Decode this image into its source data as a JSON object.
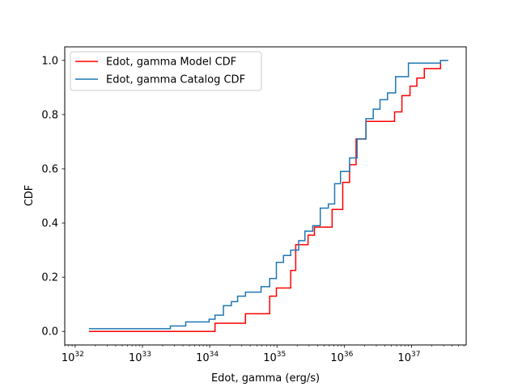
{
  "chart_data": {
    "type": "line",
    "title": "",
    "xlabel": "Edot, gamma (erg/s)",
    "ylabel": "CDF",
    "xscale": "log",
    "xlim": [
      7e+31,
      6.5e+37
    ],
    "ylim": [
      -0.05,
      1.05
    ],
    "grid": false,
    "legend_position": "upper-left",
    "x_ticks": [
      {
        "base": "10",
        "exp": "32",
        "value": 1e+32
      },
      {
        "base": "10",
        "exp": "33",
        "value": 1e+33
      },
      {
        "base": "10",
        "exp": "34",
        "value": 1e+34
      },
      {
        "base": "10",
        "exp": "35",
        "value": 1e+35
      },
      {
        "base": "10",
        "exp": "36",
        "value": 1e+36
      },
      {
        "base": "10",
        "exp": "37",
        "value": 1e+37
      }
    ],
    "y_ticks": [
      "0.0",
      "0.2",
      "0.4",
      "0.6",
      "0.8",
      "1.0"
    ],
    "series": [
      {
        "name": "Edot, gamma Model CDF",
        "color": "#ff0000",
        "step": "post",
        "x": [
          1.6e+32,
          1.2e+34,
          2.6e+34,
          3.4e+34,
          7.8e+34,
          9.8e+34,
          1.6e+35,
          1.9e+35,
          2.9e+35,
          3.6e+35,
          6.6e+35,
          9.5e+35,
          1.2e+36,
          1.5e+36,
          2.1e+36,
          5.6e+36,
          7.2e+36,
          9.5e+36,
          1.2e+37,
          1.55e+37,
          2.7e+37,
          3.5e+37
        ],
        "y": [
          0.0,
          0.03,
          0.03,
          0.065,
          0.13,
          0.16,
          0.225,
          0.32,
          0.355,
          0.385,
          0.45,
          0.55,
          0.615,
          0.71,
          0.775,
          0.81,
          0.87,
          0.905,
          0.935,
          0.97,
          1.0,
          1.0
        ]
      },
      {
        "name": "Edot, gamma Catalog CDF",
        "color": "#1f77b4",
        "step": "post",
        "x": [
          1.6e+32,
          2.6e+33,
          4.4e+33,
          9.8e+33,
          1.2e+34,
          1.6e+34,
          2.1e+34,
          2.6e+34,
          3.4e+34,
          5.8e+34,
          7.8e+34,
          9.8e+34,
          1.25e+35,
          1.6e+35,
          2.1e+35,
          2.6e+35,
          3.4e+35,
          4.4e+35,
          5.8e+35,
          7.2e+35,
          8.8e+35,
          1.2e+36,
          1.55e+36,
          2.1e+36,
          2.7e+36,
          3.4e+36,
          4.4e+36,
          5.8e+36,
          9e+36,
          2.7e+37,
          3.5e+37
        ],
        "y": [
          0.01,
          0.02,
          0.035,
          0.045,
          0.06,
          0.095,
          0.11,
          0.13,
          0.145,
          0.165,
          0.195,
          0.255,
          0.28,
          0.3,
          0.335,
          0.37,
          0.39,
          0.455,
          0.47,
          0.545,
          0.59,
          0.64,
          0.71,
          0.785,
          0.82,
          0.855,
          0.88,
          0.94,
          0.99,
          1.0,
          1.0
        ]
      }
    ]
  }
}
